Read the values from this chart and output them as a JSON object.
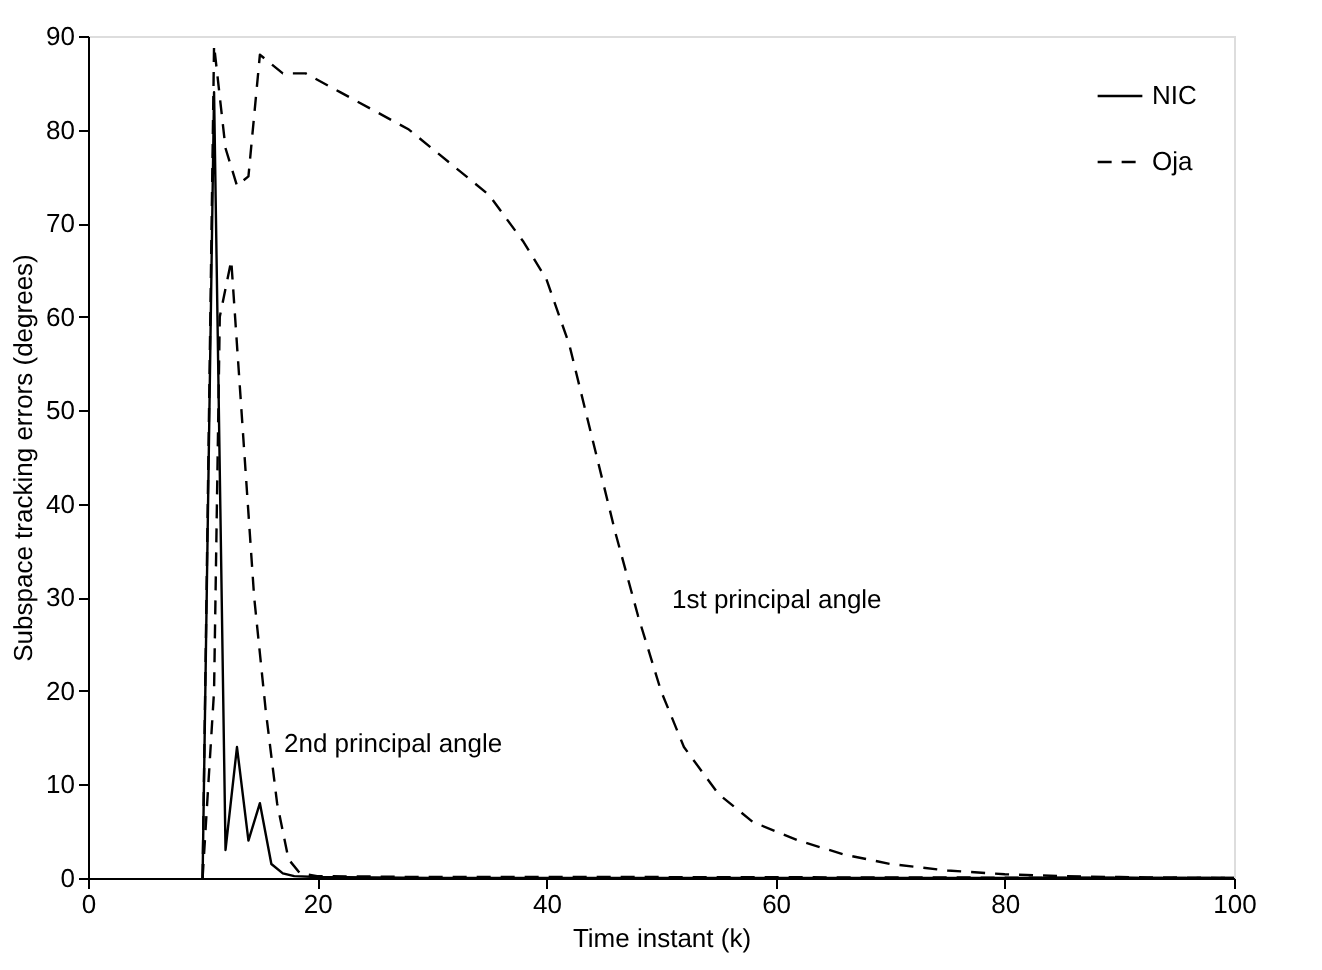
{
  "chart_data": {
    "type": "line",
    "xlabel": "Time instant (k)",
    "ylabel": "Subspace tracking errors (degrees)",
    "xlim": [
      0,
      100
    ],
    "ylim": [
      0,
      90
    ],
    "xticks": [
      0,
      20,
      40,
      60,
      80,
      100
    ],
    "yticks": [
      0,
      10,
      20,
      30,
      40,
      50,
      60,
      70,
      80,
      90
    ],
    "grid": false,
    "legend": "top right",
    "marker": "none",
    "series": [
      {
        "name": "NIC",
        "color": "#000000",
        "line_style": "solid",
        "x": [
          10,
          11,
          12,
          13,
          14,
          15,
          16,
          17,
          18,
          20,
          30,
          40,
          60,
          80,
          100
        ],
        "values": [
          0,
          84,
          3,
          14,
          4,
          8,
          1.5,
          0.5,
          0.2,
          0.1,
          0,
          0,
          0,
          0,
          0
        ]
      },
      {
        "name": "Oja",
        "color": "#000000",
        "line_style": "dashed",
        "x": [
          10,
          11,
          12,
          13,
          14,
          15,
          17,
          19,
          22,
          25,
          28,
          32,
          35,
          38,
          40,
          42,
          44,
          46,
          48,
          50,
          52,
          55,
          58,
          62,
          66,
          70,
          75,
          80,
          85,
          90,
          100
        ],
        "values": [
          0,
          89,
          78,
          74,
          75,
          88,
          86,
          86,
          84,
          82,
          80,
          76,
          73,
          68,
          64,
          57,
          47,
          37,
          28,
          20,
          14,
          9,
          6,
          4,
          2.5,
          1.5,
          0.8,
          0.4,
          0.2,
          0.1,
          0
        ]
      },
      {
        "color": "#000000",
        "line_style": "dashed",
        "x": [
          10,
          11,
          11.5,
          12.5,
          13.5,
          14.5,
          15.5,
          16.5,
          17.5,
          18.5,
          20,
          30,
          50,
          100
        ],
        "values": [
          0,
          20,
          60,
          66,
          48,
          30,
          18,
          8,
          2,
          0.5,
          0.2,
          0.1,
          0.1,
          0
        ]
      }
    ],
    "annotations": [
      "1st principal angle",
      "2nd principal angle"
    ]
  }
}
